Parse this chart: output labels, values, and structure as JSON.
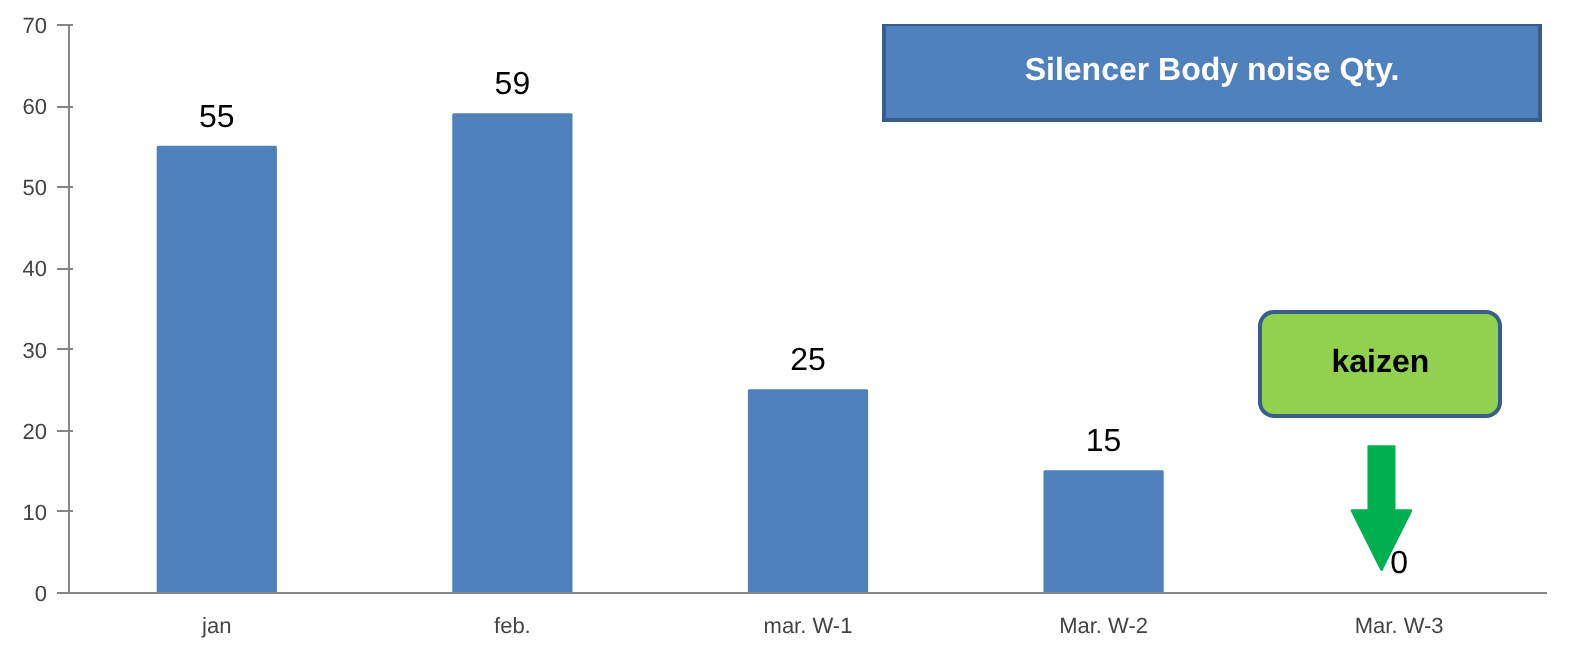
{
  "chart_data": {
    "type": "bar",
    "title": "Silencer Body noise Qty.",
    "categories": [
      "jan",
      "feb.",
      "mar. W-1",
      "Mar. W-2",
      "Mar. W-3"
    ],
    "values": [
      55,
      59,
      25,
      15,
      0
    ],
    "color": "#4f81bd",
    "ylim": [
      0,
      70
    ],
    "yticks": [
      0,
      10,
      20,
      30,
      40,
      50,
      60,
      70
    ],
    "data_labels": true,
    "grid": false,
    "annotations": [
      "kaizen"
    ]
  }
}
